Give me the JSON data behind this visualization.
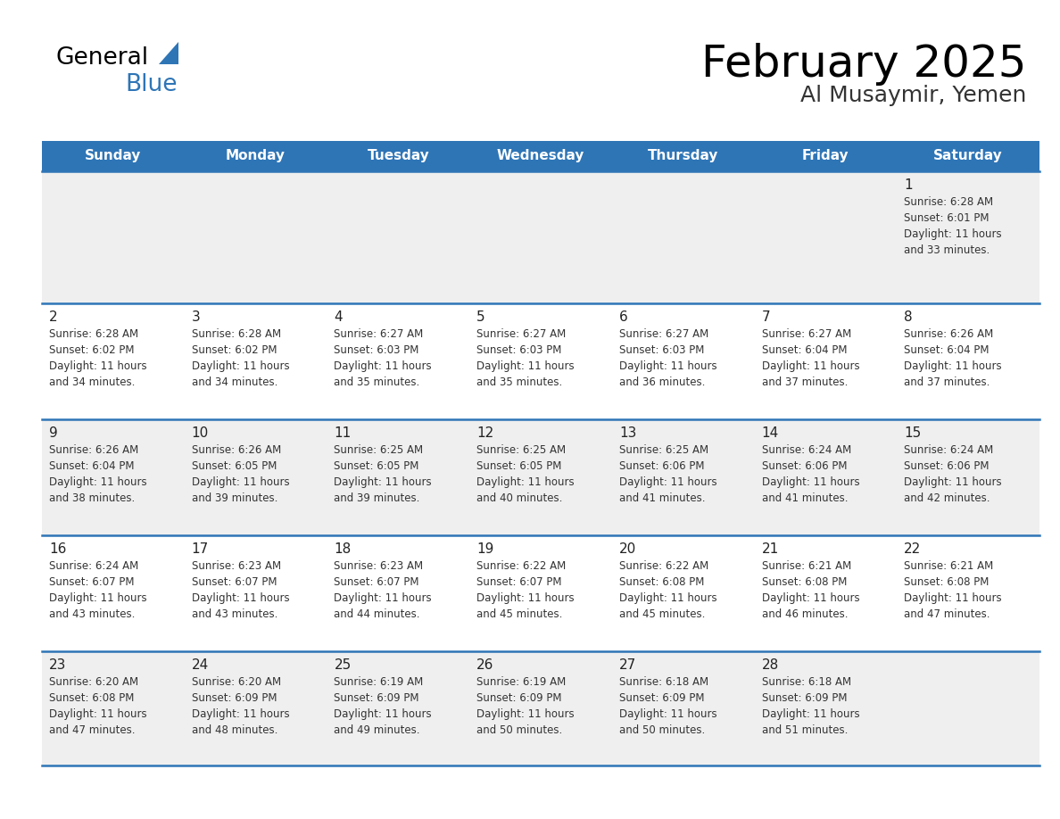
{
  "title": "February 2025",
  "subtitle": "Al Musaymir, Yemen",
  "days_of_week": [
    "Sunday",
    "Monday",
    "Tuesday",
    "Wednesday",
    "Thursday",
    "Friday",
    "Saturday"
  ],
  "header_bg": "#2E75B6",
  "header_text": "#FFFFFF",
  "row_bg_gray": "#EFEFEF",
  "row_bg_white": "#FFFFFF",
  "divider_color": "#2E75B6",
  "date_color": "#222222",
  "text_color": "#333333",
  "calendar_data": [
    [
      {
        "day": null,
        "sunrise": null,
        "sunset": null,
        "daylight": null
      },
      {
        "day": null,
        "sunrise": null,
        "sunset": null,
        "daylight": null
      },
      {
        "day": null,
        "sunrise": null,
        "sunset": null,
        "daylight": null
      },
      {
        "day": null,
        "sunrise": null,
        "sunset": null,
        "daylight": null
      },
      {
        "day": null,
        "sunrise": null,
        "sunset": null,
        "daylight": null
      },
      {
        "day": null,
        "sunrise": null,
        "sunset": null,
        "daylight": null
      },
      {
        "day": 1,
        "sunrise": "6:28 AM",
        "sunset": "6:01 PM",
        "daylight": "11 hours\nand 33 minutes."
      }
    ],
    [
      {
        "day": 2,
        "sunrise": "6:28 AM",
        "sunset": "6:02 PM",
        "daylight": "11 hours\nand 34 minutes."
      },
      {
        "day": 3,
        "sunrise": "6:28 AM",
        "sunset": "6:02 PM",
        "daylight": "11 hours\nand 34 minutes."
      },
      {
        "day": 4,
        "sunrise": "6:27 AM",
        "sunset": "6:03 PM",
        "daylight": "11 hours\nand 35 minutes."
      },
      {
        "day": 5,
        "sunrise": "6:27 AM",
        "sunset": "6:03 PM",
        "daylight": "11 hours\nand 35 minutes."
      },
      {
        "day": 6,
        "sunrise": "6:27 AM",
        "sunset": "6:03 PM",
        "daylight": "11 hours\nand 36 minutes."
      },
      {
        "day": 7,
        "sunrise": "6:27 AM",
        "sunset": "6:04 PM",
        "daylight": "11 hours\nand 37 minutes."
      },
      {
        "day": 8,
        "sunrise": "6:26 AM",
        "sunset": "6:04 PM",
        "daylight": "11 hours\nand 37 minutes."
      }
    ],
    [
      {
        "day": 9,
        "sunrise": "6:26 AM",
        "sunset": "6:04 PM",
        "daylight": "11 hours\nand 38 minutes."
      },
      {
        "day": 10,
        "sunrise": "6:26 AM",
        "sunset": "6:05 PM",
        "daylight": "11 hours\nand 39 minutes."
      },
      {
        "day": 11,
        "sunrise": "6:25 AM",
        "sunset": "6:05 PM",
        "daylight": "11 hours\nand 39 minutes."
      },
      {
        "day": 12,
        "sunrise": "6:25 AM",
        "sunset": "6:05 PM",
        "daylight": "11 hours\nand 40 minutes."
      },
      {
        "day": 13,
        "sunrise": "6:25 AM",
        "sunset": "6:06 PM",
        "daylight": "11 hours\nand 41 minutes."
      },
      {
        "day": 14,
        "sunrise": "6:24 AM",
        "sunset": "6:06 PM",
        "daylight": "11 hours\nand 41 minutes."
      },
      {
        "day": 15,
        "sunrise": "6:24 AM",
        "sunset": "6:06 PM",
        "daylight": "11 hours\nand 42 minutes."
      }
    ],
    [
      {
        "day": 16,
        "sunrise": "6:24 AM",
        "sunset": "6:07 PM",
        "daylight": "11 hours\nand 43 minutes."
      },
      {
        "day": 17,
        "sunrise": "6:23 AM",
        "sunset": "6:07 PM",
        "daylight": "11 hours\nand 43 minutes."
      },
      {
        "day": 18,
        "sunrise": "6:23 AM",
        "sunset": "6:07 PM",
        "daylight": "11 hours\nand 44 minutes."
      },
      {
        "day": 19,
        "sunrise": "6:22 AM",
        "sunset": "6:07 PM",
        "daylight": "11 hours\nand 45 minutes."
      },
      {
        "day": 20,
        "sunrise": "6:22 AM",
        "sunset": "6:08 PM",
        "daylight": "11 hours\nand 45 minutes."
      },
      {
        "day": 21,
        "sunrise": "6:21 AM",
        "sunset": "6:08 PM",
        "daylight": "11 hours\nand 46 minutes."
      },
      {
        "day": 22,
        "sunrise": "6:21 AM",
        "sunset": "6:08 PM",
        "daylight": "11 hours\nand 47 minutes."
      }
    ],
    [
      {
        "day": 23,
        "sunrise": "6:20 AM",
        "sunset": "6:08 PM",
        "daylight": "11 hours\nand 47 minutes."
      },
      {
        "day": 24,
        "sunrise": "6:20 AM",
        "sunset": "6:09 PM",
        "daylight": "11 hours\nand 48 minutes."
      },
      {
        "day": 25,
        "sunrise": "6:19 AM",
        "sunset": "6:09 PM",
        "daylight": "11 hours\nand 49 minutes."
      },
      {
        "day": 26,
        "sunrise": "6:19 AM",
        "sunset": "6:09 PM",
        "daylight": "11 hours\nand 50 minutes."
      },
      {
        "day": 27,
        "sunrise": "6:18 AM",
        "sunset": "6:09 PM",
        "daylight": "11 hours\nand 50 minutes."
      },
      {
        "day": 28,
        "sunrise": "6:18 AM",
        "sunset": "6:09 PM",
        "daylight": "11 hours\nand 51 minutes."
      },
      {
        "day": null,
        "sunrise": null,
        "sunset": null,
        "daylight": null
      }
    ]
  ]
}
